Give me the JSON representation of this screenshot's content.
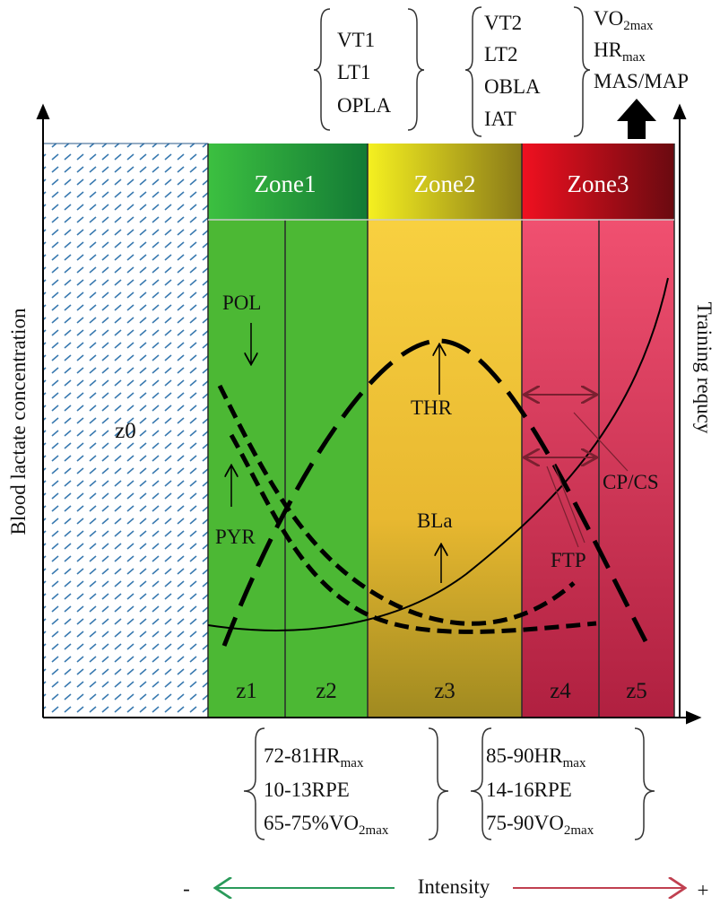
{
  "top_labels": {
    "group1": [
      "VT1",
      "LT1",
      "OPLA"
    ],
    "group2": [
      "VT2",
      "LT2",
      "OBLA",
      "IAT"
    ],
    "group3": [
      {
        "main": "VO",
        "sub": "2max"
      },
      {
        "main": "HR",
        "sub": "max"
      },
      {
        "main": "MAS/MAP"
      }
    ]
  },
  "zones": [
    "Zone1",
    "Zone2",
    "Zone3"
  ],
  "subzones": [
    "z0",
    "z1",
    "z2",
    "z3",
    "z4",
    "z5"
  ],
  "curve_labels": {
    "pol": "POL",
    "pyr": "PYR",
    "thr": "THR",
    "bla": "BLa",
    "ftp": "FTP",
    "cpcs": "CP/CS"
  },
  "axes": {
    "y_left": "Blood lactate concentration",
    "y_right": "Training requcy",
    "x": "Intensity",
    "minus": "-",
    "plus": "+"
  },
  "bottom_labels": {
    "group1": [
      {
        "main": "72-81HR",
        "sub": "max"
      },
      {
        "main": "10-13RPE"
      },
      {
        "main": "65-75%VO",
        "sub": "2max"
      }
    ],
    "group2": [
      {
        "main": "85-90HR",
        "sub": "max"
      },
      {
        "main": "14-16RPE"
      },
      {
        "main": "75-90VO",
        "sub": "2max"
      }
    ]
  }
}
